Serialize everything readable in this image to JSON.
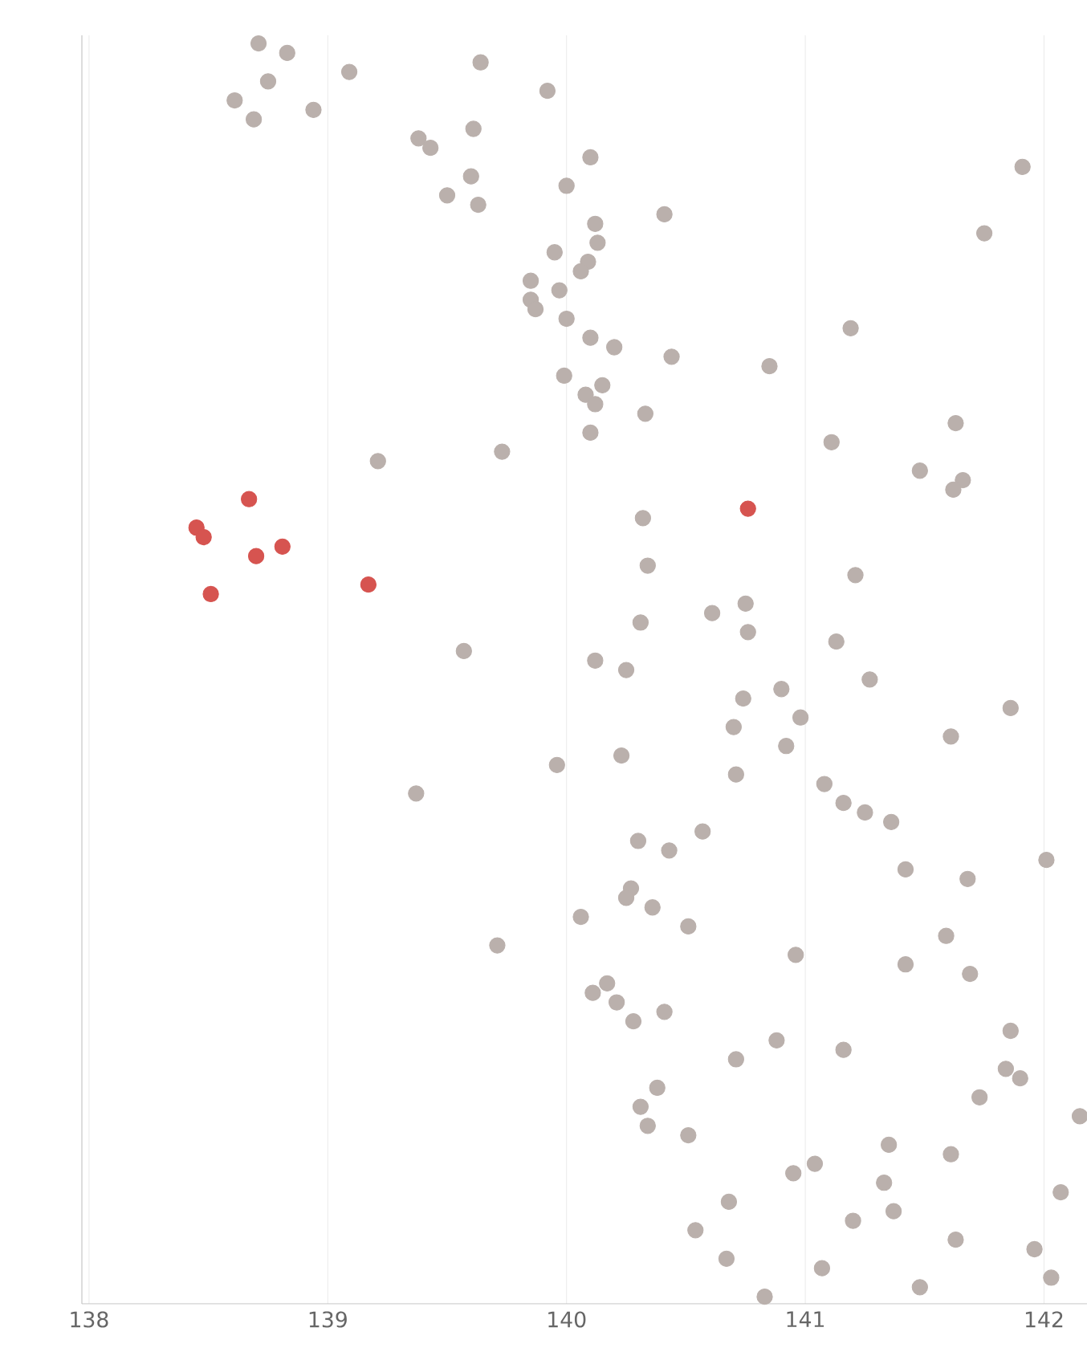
{
  "chart_data": {
    "type": "scatter",
    "orientation": "horizontal",
    "marker": "circle",
    "grid": "x",
    "xlim": [
      137.97,
      142.18
    ],
    "xticks": [
      138,
      139,
      140,
      141,
      142
    ],
    "categories": [
      null,
      null,
      null,
      null,
      null,
      null,
      null,
      null,
      null,
      null,
      null,
      null,
      null,
      null,
      null,
      null,
      null,
      null,
      null,
      null,
      null,
      null,
      null,
      null,
      null,
      null,
      null,
      null,
      null,
      null,
      null,
      null,
      null,
      null,
      null,
      null,
      null,
      null,
      null,
      null,
      null,
      null,
      null,
      null,
      null,
      null,
      null,
      null,
      null,
      null,
      null,
      null,
      null,
      null,
      null,
      null,
      null,
      null,
      null,
      null,
      null,
      null,
      null,
      null,
      null,
      null,
      null,
      null,
      null,
      null,
      null,
      null,
      null,
      null,
      null,
      null,
      null,
      null,
      null,
      null,
      null,
      null,
      null,
      null,
      null,
      null,
      null,
      null,
      null,
      null,
      null,
      null,
      null,
      null,
      null,
      null,
      null,
      null,
      null,
      null,
      null,
      null,
      null,
      null,
      null,
      null,
      null,
      null,
      null,
      null,
      null,
      null,
      null,
      null,
      null,
      null,
      null,
      null,
      null,
      null,
      null,
      null,
      null,
      null,
      null,
      null,
      null,
      null,
      null,
      null,
      null,
      null,
      null
    ],
    "values": [
      138.71,
      138.83,
      139.64,
      139.09,
      138.75,
      139.92,
      138.61,
      138.94,
      138.69,
      139.61,
      139.38,
      139.43,
      140.1,
      141.91,
      139.6,
      140.0,
      139.5,
      139.63,
      140.41,
      140.12,
      141.75,
      140.13,
      139.95,
      140.09,
      140.06,
      139.85,
      139.97,
      139.85,
      139.87,
      140.0,
      141.19,
      140.1,
      140.2,
      140.44,
      140.85,
      139.99,
      140.15,
      140.08,
      140.12,
      140.33,
      141.63,
      140.1,
      141.11,
      139.73,
      139.21,
      141.48,
      141.66,
      141.62,
      138.67,
      140.76,
      140.32,
      138.45,
      138.48,
      138.81,
      138.7,
      140.34,
      141.21,
      139.17,
      138.51,
      140.75,
      140.61,
      140.31,
      140.76,
      141.13,
      139.57,
      140.12,
      140.25,
      141.27,
      140.9,
      140.74,
      141.86,
      140.98,
      140.7,
      141.61,
      140.92,
      140.23,
      139.96,
      140.71,
      141.08,
      139.37,
      141.16,
      141.25,
      141.36,
      140.57,
      140.3,
      140.43,
      142.01,
      141.42,
      141.68,
      140.27,
      140.25,
      140.36,
      140.06,
      140.51,
      141.59,
      139.71,
      140.96,
      141.42,
      141.69,
      140.17,
      140.11,
      140.21,
      140.41,
      140.28,
      141.86,
      140.88,
      141.16,
      140.71,
      141.84,
      141.9,
      140.38,
      141.73,
      140.31,
      142.15,
      140.34,
      140.51,
      141.35,
      141.61,
      141.04,
      140.95,
      141.33,
      142.07,
      140.68,
      141.37,
      141.2,
      140.54,
      141.63,
      141.96,
      140.67,
      141.07,
      142.03,
      141.48,
      140.83
    ],
    "colors": [
      "#bab0ac",
      "#bab0ac",
      "#bab0ac",
      "#bab0ac",
      "#bab0ac",
      "#bab0ac",
      "#bab0ac",
      "#bab0ac",
      "#bab0ac",
      "#bab0ac",
      "#bab0ac",
      "#bab0ac",
      "#bab0ac",
      "#bab0ac",
      "#bab0ac",
      "#bab0ac",
      "#bab0ac",
      "#bab0ac",
      "#bab0ac",
      "#bab0ac",
      "#bab0ac",
      "#bab0ac",
      "#bab0ac",
      "#bab0ac",
      "#bab0ac",
      "#bab0ac",
      "#bab0ac",
      "#bab0ac",
      "#bab0ac",
      "#bab0ac",
      "#bab0ac",
      "#bab0ac",
      "#bab0ac",
      "#bab0ac",
      "#bab0ac",
      "#bab0ac",
      "#bab0ac",
      "#bab0ac",
      "#bab0ac",
      "#bab0ac",
      "#bab0ac",
      "#bab0ac",
      "#bab0ac",
      "#bab0ac",
      "#bab0ac",
      "#bab0ac",
      "#bab0ac",
      "#bab0ac",
      "#d65450",
      "#d65450",
      "#bab0ac",
      "#d65450",
      "#d65450",
      "#d65450",
      "#d65450",
      "#bab0ac",
      "#bab0ac",
      "#d65450",
      "#d65450",
      "#bab0ac",
      "#bab0ac",
      "#bab0ac",
      "#bab0ac",
      "#bab0ac",
      "#bab0ac",
      "#bab0ac",
      "#bab0ac",
      "#bab0ac",
      "#bab0ac",
      "#bab0ac",
      "#bab0ac",
      "#bab0ac",
      "#bab0ac",
      "#bab0ac",
      "#bab0ac",
      "#bab0ac",
      "#bab0ac",
      "#bab0ac",
      "#bab0ac",
      "#bab0ac",
      "#bab0ac",
      "#bab0ac",
      "#bab0ac",
      "#bab0ac",
      "#bab0ac",
      "#bab0ac",
      "#bab0ac",
      "#bab0ac",
      "#bab0ac",
      "#bab0ac",
      "#bab0ac",
      "#bab0ac",
      "#bab0ac",
      "#bab0ac",
      "#bab0ac",
      "#bab0ac",
      "#bab0ac",
      "#bab0ac",
      "#bab0ac",
      "#bab0ac",
      "#bab0ac",
      "#bab0ac",
      "#bab0ac",
      "#bab0ac",
      "#bab0ac",
      "#bab0ac",
      "#bab0ac",
      "#bab0ac",
      "#bab0ac",
      "#bab0ac",
      "#bab0ac",
      "#bab0ac",
      "#bab0ac",
      "#bab0ac",
      "#bab0ac",
      "#bab0ac",
      "#bab0ac",
      "#bab0ac",
      "#bab0ac",
      "#bab0ac",
      "#bab0ac",
      "#bab0ac",
      "#bab0ac",
      "#bab0ac",
      "#bab0ac",
      "#bab0ac",
      "#bab0ac",
      "#bab0ac",
      "#bab0ac",
      "#bab0ac",
      "#bab0ac",
      "#bab0ac",
      "#bab0ac"
    ]
  }
}
